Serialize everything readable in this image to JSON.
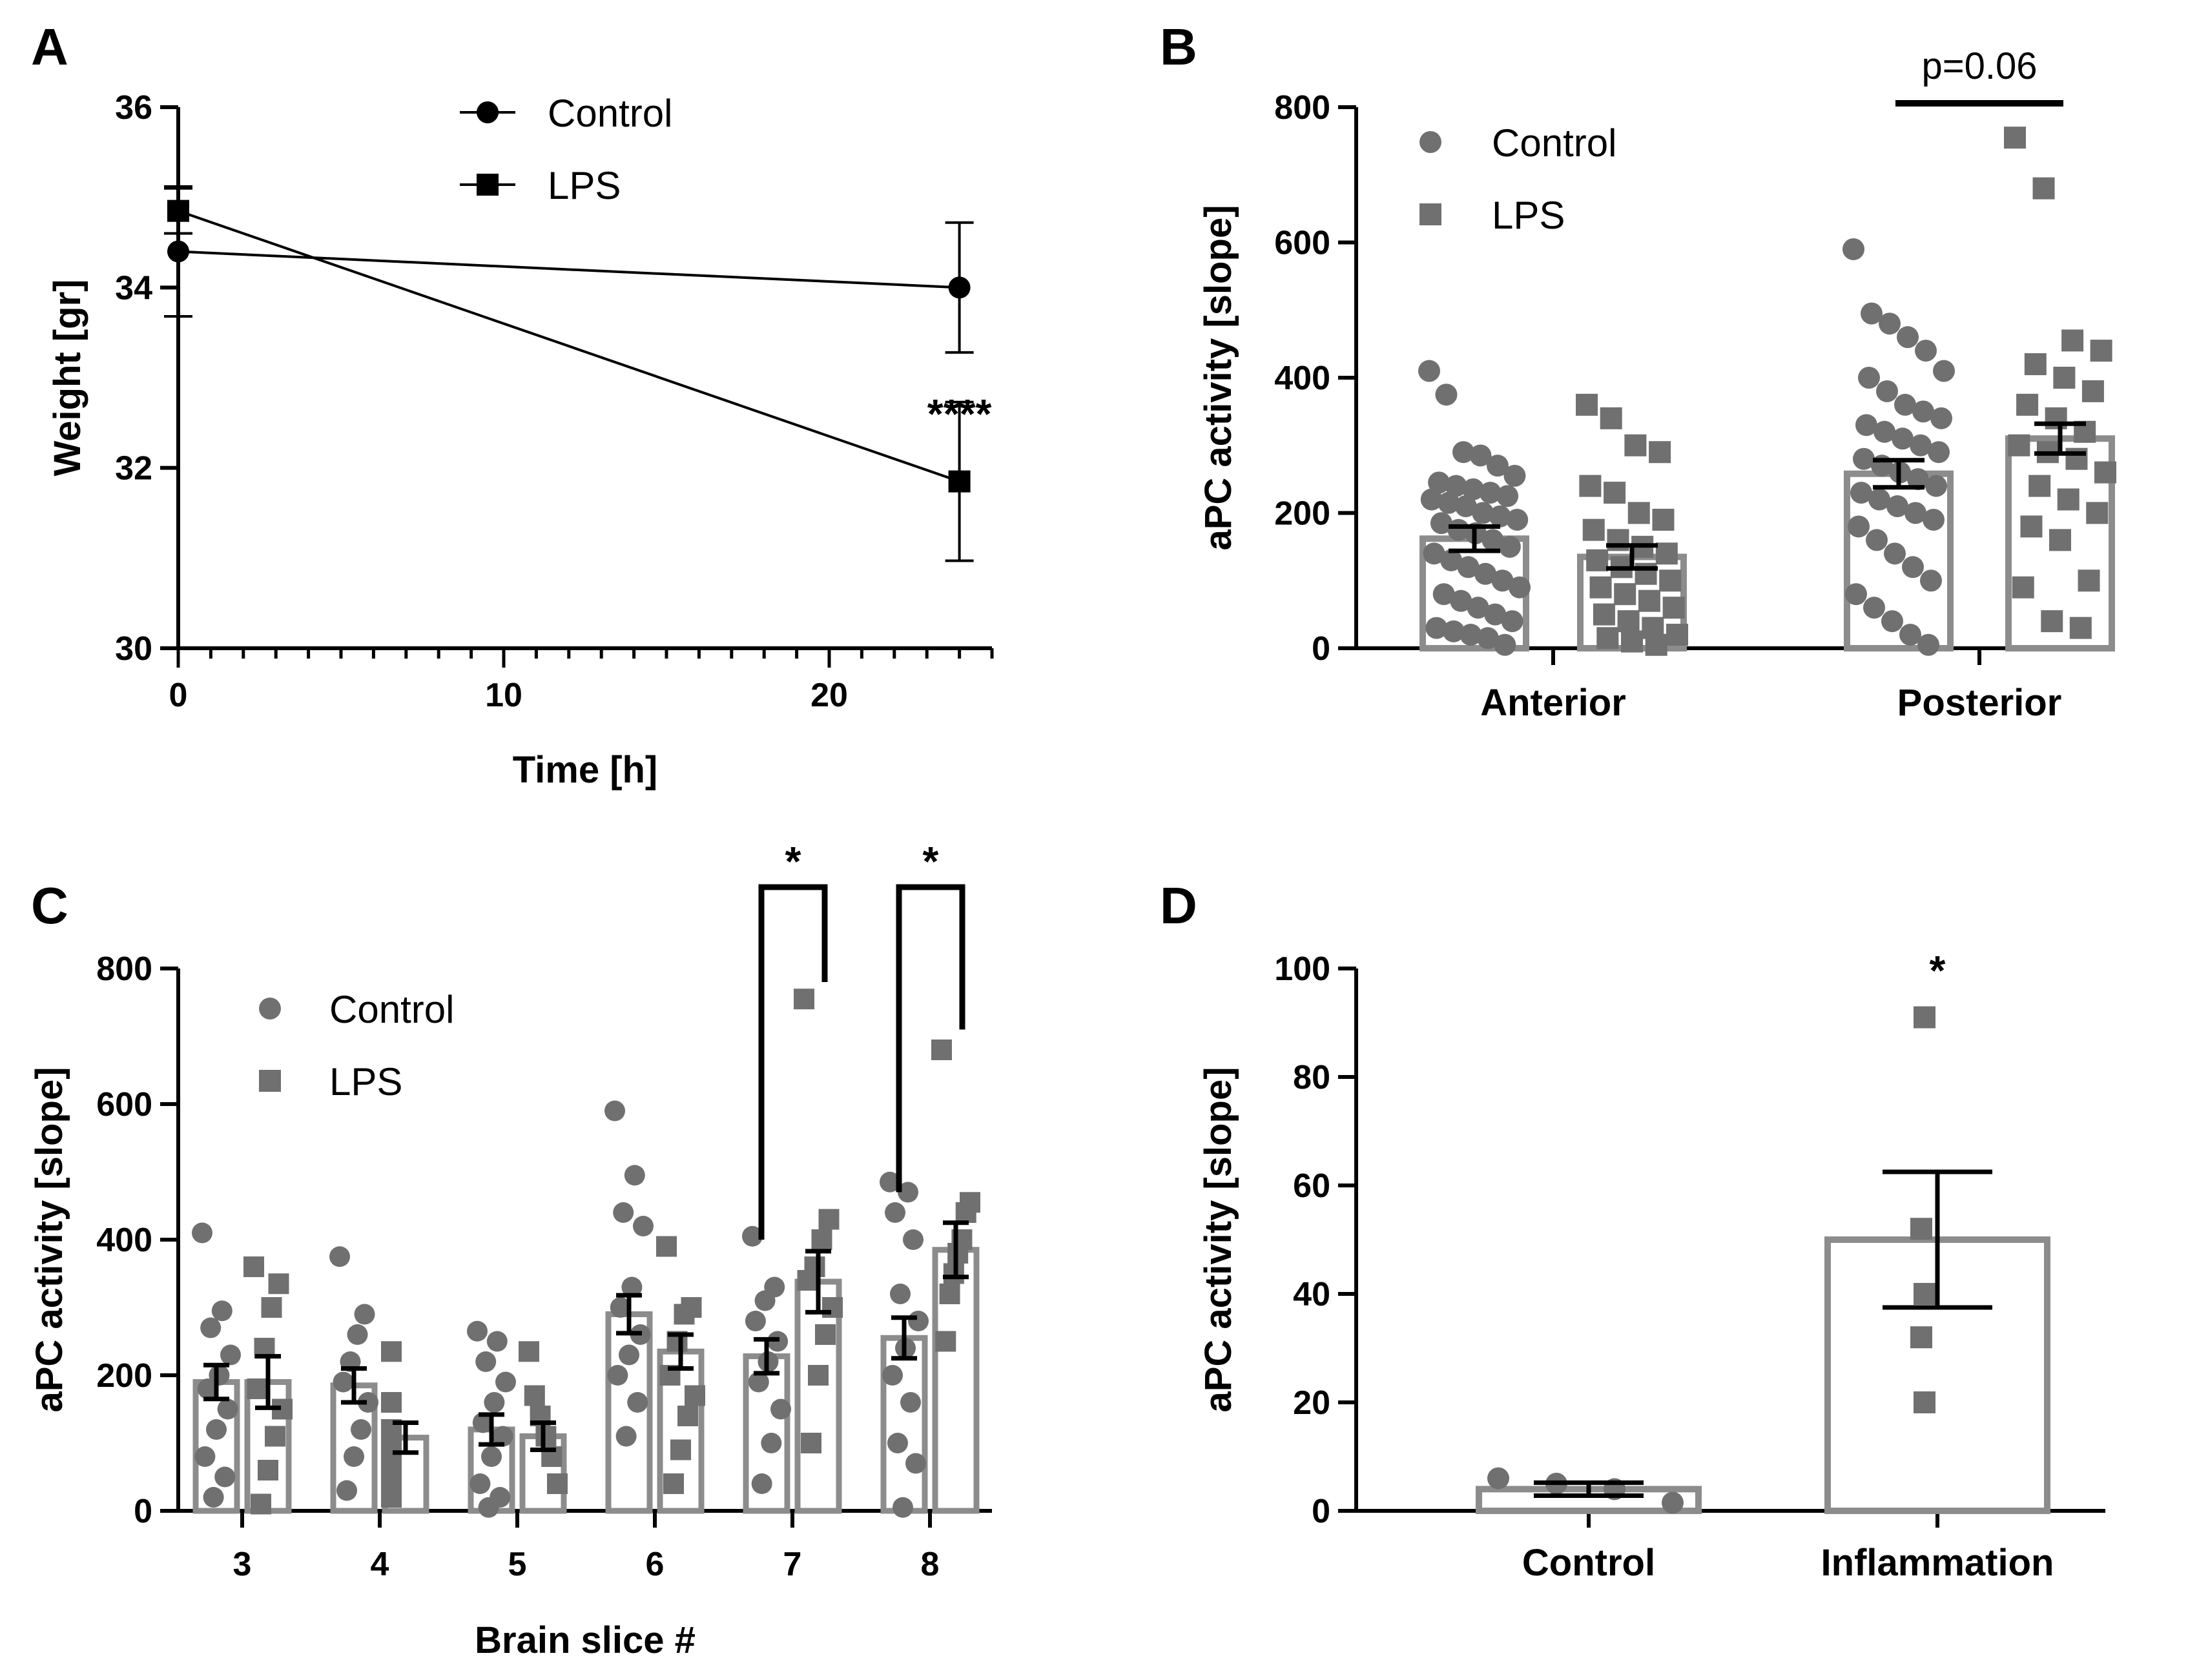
{
  "colors": {
    "black": "#000000",
    "gray_fill": "#707070",
    "gray_bar": "#8c8c8c"
  },
  "chart_data": [
    {
      "id": "A",
      "panel_label": "A",
      "type": "line",
      "xlabel": "Time [h]",
      "ylabel": "Weight [gr]",
      "xlim": [
        0,
        25
      ],
      "ylim": [
        30,
        36
      ],
      "xticks": [
        0,
        10,
        20
      ],
      "yticks": [
        30,
        32,
        34,
        36
      ],
      "legend": [
        "Control",
        "LPS"
      ],
      "legend_position": "top-center",
      "series": [
        {
          "name": "Control",
          "marker": "circle",
          "x": [
            0,
            24
          ],
          "y": [
            34.4,
            34.0
          ],
          "err": [
            0.72,
            0.72
          ]
        },
        {
          "name": "LPS",
          "marker": "square",
          "x": [
            0,
            24
          ],
          "y": [
            34.85,
            31.85
          ],
          "err": [
            0.25,
            0.88
          ]
        }
      ],
      "annotations": [
        {
          "text": "****",
          "x": 24,
          "y": 32.8
        }
      ]
    },
    {
      "id": "B",
      "panel_label": "B",
      "type": "bar",
      "ylabel": "aPC activity [slope]",
      "ylim": [
        0,
        800
      ],
      "yticks": [
        0,
        200,
        400,
        600,
        800
      ],
      "categories": [
        "Anterior",
        "Posterior"
      ],
      "legend": [
        "Control",
        "LPS"
      ],
      "legend_position": "top-left",
      "series": [
        {
          "name": "Control",
          "marker": "circle",
          "values": [
            162,
            258
          ],
          "sem": [
            18,
            20
          ],
          "points": [
            [
              410,
              375,
              290,
              285,
              270,
              255,
              245,
              240,
              235,
              230,
              225,
              220,
              215,
              210,
              200,
              195,
              190,
              185,
              175,
              170,
              160,
              150,
              140,
              130,
              120,
              110,
              100,
              90,
              80,
              70,
              60,
              50,
              40,
              30,
              25,
              20,
              15,
              5
            ],
            [
              590,
              495,
              480,
              460,
              440,
              410,
              400,
              380,
              360,
              350,
              340,
              330,
              320,
              310,
              300,
              290,
              280,
              270,
              260,
              250,
              240,
              230,
              220,
              210,
              200,
              190,
              180,
              160,
              140,
              120,
              100,
              80,
              60,
              40,
              20,
              5
            ]
          ]
        },
        {
          "name": "LPS",
          "marker": "square",
          "values": [
            135,
            310
          ],
          "sem": [
            17,
            22
          ],
          "points": [
            [
              360,
              340,
              300,
              290,
              240,
              230,
              200,
              190,
              175,
              160,
              150,
              140,
              130,
              120,
              110,
              100,
              90,
              80,
              70,
              60,
              50,
              40,
              30,
              20,
              15,
              10,
              5
            ],
            [
              755,
              680,
              455,
              440,
              420,
              400,
              380,
              360,
              340,
              320,
              300,
              290,
              280,
              260,
              240,
              220,
              200,
              180,
              160,
              100,
              90,
              40,
              30
            ]
          ]
        }
      ],
      "annotations": [
        {
          "text": "p=0.06",
          "between": [
            "Control",
            "LPS"
          ],
          "category": "Posterior"
        }
      ]
    },
    {
      "id": "C",
      "panel_label": "C",
      "type": "bar",
      "xlabel": "Brain slice #",
      "ylabel": "aPC activity [slope]",
      "ylim": [
        0,
        800
      ],
      "yticks": [
        0,
        200,
        400,
        600,
        800
      ],
      "categories": [
        "3",
        "4",
        "5",
        "6",
        "7",
        "8"
      ],
      "legend": [
        "Control",
        "LPS"
      ],
      "legend_position": "top-left",
      "series": [
        {
          "name": "Control",
          "marker": "circle",
          "values": [
            190,
            185,
            120,
            290,
            228,
            255
          ],
          "sem": [
            25,
            25,
            22,
            28,
            25,
            30
          ],
          "points": [
            [
              410,
              295,
              270,
              230,
              200,
              180,
              150,
              120,
              80,
              50,
              20
            ],
            [
              375,
              290,
              260,
              220,
              190,
              160,
              120,
              80,
              30
            ],
            [
              265,
              250,
              220,
              190,
              160,
              130,
              110,
              80,
              40,
              20,
              5
            ],
            [
              590,
              495,
              440,
              420,
              330,
              300,
              260,
              230,
              200,
              160,
              110
            ],
            [
              405,
              330,
              310,
              280,
              250,
              220,
              190,
              150,
              100,
              40
            ],
            [
              485,
              470,
              440,
              400,
              320,
              280,
              240,
              200,
              160,
              100,
              70,
              5
            ]
          ]
        },
        {
          "name": "LPS",
          "marker": "square",
          "values": [
            190,
            108,
            110,
            235,
            338,
            385
          ],
          "sem": [
            38,
            22,
            20,
            25,
            45,
            40
          ],
          "points": [
            [
              360,
              335,
              300,
              240,
              180,
              150,
              110,
              60,
              10
            ],
            [
              235,
              160,
              120,
              100,
              70,
              40,
              20
            ],
            [
              235,
              170,
              140,
              110,
              80,
              40
            ],
            [
              390,
              300,
              290,
              250,
              200,
              170,
              140,
              90,
              40
            ],
            [
              755,
              430,
              400,
              360,
              340,
              300,
              260,
              200,
              100
            ],
            [
              680,
              455,
              440,
              400,
              380,
              350,
              320,
              250
            ]
          ]
        }
      ],
      "annotations": [
        {
          "text": "*",
          "between": [
            "Control",
            "LPS"
          ],
          "category": "7"
        },
        {
          "text": "*",
          "between": [
            "Control",
            "LPS"
          ],
          "category": "8"
        }
      ]
    },
    {
      "id": "D",
      "panel_label": "D",
      "type": "bar",
      "ylabel": "aPC activity [slope]",
      "ylim": [
        0,
        100
      ],
      "yticks": [
        0,
        20,
        40,
        60,
        80,
        100
      ],
      "categories": [
        "Control",
        "Inflammation"
      ],
      "series": [
        {
          "name": "aPC activity",
          "values": [
            4,
            50
          ],
          "sem": [
            1.2,
            12.5
          ],
          "markers": [
            "circle",
            "square"
          ],
          "points": [
            [
              6,
              5,
              4,
              1.5
            ],
            [
              91,
              52,
              40,
              32,
              20
            ]
          ]
        }
      ],
      "annotations": [
        {
          "text": "*",
          "category": "Inflammation"
        }
      ]
    }
  ]
}
